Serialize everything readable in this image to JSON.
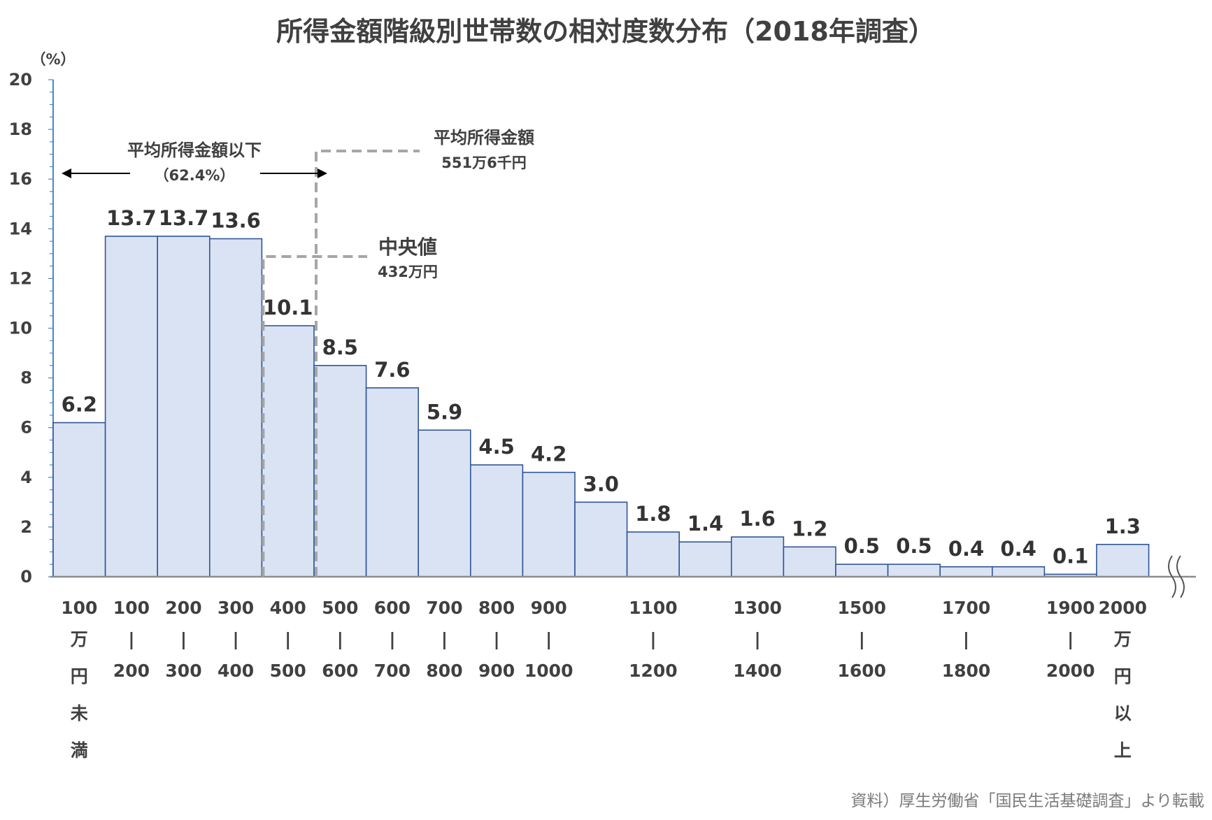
{
  "chart_data": {
    "type": "bar",
    "title": "所得金額階級別世帯数の相対度数分布（2018年調査）",
    "ylabel_unit": "（%）",
    "ylim": [
      0,
      20
    ],
    "yticks": [
      "0",
      "2",
      "4",
      "6",
      "8",
      "10",
      "12",
      "14",
      "16",
      "18",
      "20"
    ],
    "values": [
      6.2,
      13.7,
      13.7,
      13.6,
      10.1,
      8.5,
      7.6,
      5.9,
      4.5,
      4.2,
      3.0,
      1.8,
      1.4,
      1.6,
      1.2,
      0.5,
      0.5,
      0.4,
      0.4,
      0.1,
      1.3
    ],
    "value_labels": [
      "6.2",
      "13.7",
      "13.7",
      "13.6",
      "10.1",
      "8.5",
      "7.6",
      "5.9",
      "4.5",
      "4.2",
      "3.0",
      "1.8",
      "1.4",
      "1.6",
      "1.2",
      "0.5",
      "0.5",
      "0.4",
      "0.4",
      "0.1",
      "1.3"
    ],
    "category_labels": [
      [
        "100",
        "万",
        "円",
        "未",
        "満"
      ],
      [
        "100",
        "|",
        "200"
      ],
      [
        "200",
        "|",
        "300"
      ],
      [
        "300",
        "|",
        "400"
      ],
      [
        "400",
        "|",
        "500"
      ],
      [
        "500",
        "|",
        "600"
      ],
      [
        "600",
        "|",
        "700"
      ],
      [
        "700",
        "|",
        "800"
      ],
      [
        "800",
        "|",
        "900"
      ],
      [
        "900",
        "|",
        "1000"
      ],
      [],
      [
        "1100",
        "|",
        "1200"
      ],
      [],
      [
        "1300",
        "|",
        "1400"
      ],
      [],
      [
        "1500",
        "|",
        "1600"
      ],
      [],
      [
        "1700",
        "|",
        "1800"
      ],
      [],
      [
        "1900",
        "|",
        "2000"
      ],
      [
        "2000",
        "万",
        "円",
        "以",
        "上"
      ]
    ],
    "bar_fill": "#dae3f3",
    "bar_stroke": "#2f5597",
    "axis_color": "#4a86c8",
    "grid": false,
    "annotations": {
      "below_mean_label": "平均所得金額以下",
      "below_mean_pct": "（62.4%）",
      "mean_label": "平均所得金額",
      "mean_value": "551万6千円",
      "mean_position": 551.6,
      "median_label": "中央値",
      "median_value": "432万円",
      "median_position": 432
    },
    "source_note": "資料）厚生労働省「国民生活基礎調査」より転載"
  }
}
